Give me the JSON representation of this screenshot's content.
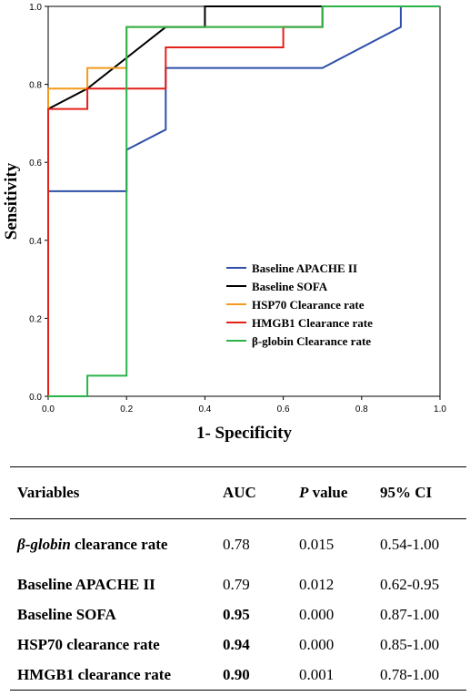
{
  "chart_data": {
    "type": "line",
    "xlabel": "1- Specificity",
    "ylabel": "Sensitivity",
    "xlim": [
      0,
      1
    ],
    "ylim": [
      0,
      1
    ],
    "xticks": [
      "0.0",
      "0.2",
      "0.4",
      "0.6",
      "0.8",
      "1.0"
    ],
    "yticks": [
      "0.0",
      "0.2",
      "0.4",
      "0.6",
      "0.8",
      "1.0"
    ],
    "grid": false,
    "legend_position": "bottom-right",
    "series": [
      {
        "name": "Baseline APACHE II",
        "color": "#2e4fa8",
        "points": [
          [
            0,
            0
          ],
          [
            0,
            0.526
          ],
          [
            0.2,
            0.526
          ],
          [
            0.2,
            0.632
          ],
          [
            0.3,
            0.684
          ],
          [
            0.3,
            0.842
          ],
          [
            0.7,
            0.842
          ],
          [
            0.9,
            0.947
          ],
          [
            0.9,
            1.0
          ],
          [
            1.0,
            1.0
          ]
        ]
      },
      {
        "name": "Baseline SOFA",
        "color": "#000000",
        "points": [
          [
            0,
            0
          ],
          [
            0,
            0.737
          ],
          [
            0.1,
            0.789
          ],
          [
            0.2,
            0.868
          ],
          [
            0.3,
            0.947
          ],
          [
            0.4,
            0.947
          ],
          [
            0.4,
            1.0
          ],
          [
            1.0,
            1.0
          ]
        ]
      },
      {
        "name": "HSP70 Clearance rate",
        "color": "#f39a1c",
        "points": [
          [
            0,
            0
          ],
          [
            0,
            0.789
          ],
          [
            0.1,
            0.789
          ],
          [
            0.1,
            0.842
          ],
          [
            0.2,
            0.842
          ],
          [
            0.2,
            0.947
          ],
          [
            0.7,
            0.947
          ],
          [
            0.7,
            1.0
          ],
          [
            1.0,
            1.0
          ]
        ]
      },
      {
        "name": "HMGB1 Clearance rate",
        "color": "#e32119",
        "points": [
          [
            0,
            0
          ],
          [
            0,
            0.737
          ],
          [
            0.1,
            0.737
          ],
          [
            0.1,
            0.789
          ],
          [
            0.3,
            0.789
          ],
          [
            0.3,
            0.895
          ],
          [
            0.6,
            0.895
          ],
          [
            0.6,
            0.947
          ],
          [
            0.7,
            0.947
          ],
          [
            0.7,
            1.0
          ],
          [
            1.0,
            1.0
          ]
        ]
      },
      {
        "name": "β-globin Clearance rate",
        "color": "#2bb34a",
        "points": [
          [
            0,
            0
          ],
          [
            0.1,
            0
          ],
          [
            0.1,
            0.053
          ],
          [
            0.2,
            0.053
          ],
          [
            0.2,
            0.632
          ],
          [
            0.2,
            0.947
          ],
          [
            0.7,
            0.947
          ],
          [
            0.7,
            1.0
          ],
          [
            1.0,
            1.0
          ]
        ]
      }
    ]
  },
  "table": {
    "headers": {
      "variables": "Variables",
      "auc": "AUC",
      "p_italic": "P",
      "p_rest": " value",
      "ci": "95% CI"
    },
    "rows": [
      {
        "var_italic": "β-globin",
        "var_rest": " clearance rate",
        "auc": "0.78",
        "auc_bold": false,
        "p": "0.015",
        "ci": "0.54-1.00"
      },
      {
        "var_italic": "",
        "var_rest": "Baseline APACHE II",
        "auc": "0.79",
        "auc_bold": false,
        "p": "0.012",
        "ci": "0.62-0.95"
      },
      {
        "var_italic": "",
        "var_rest": "Baseline SOFA",
        "auc": "0.95",
        "auc_bold": true,
        "p": "0.000",
        "ci": "0.87-1.00"
      },
      {
        "var_italic": "",
        "var_rest": "HSP70 clearance rate",
        "auc": "0.94",
        "auc_bold": true,
        "p": "0.000",
        "ci": "0.85-1.00"
      },
      {
        "var_italic": "",
        "var_rest": "HMGB1 clearance rate",
        "auc": "0.90",
        "auc_bold": true,
        "p": "0.001",
        "ci": "0.78-1.00"
      }
    ]
  }
}
